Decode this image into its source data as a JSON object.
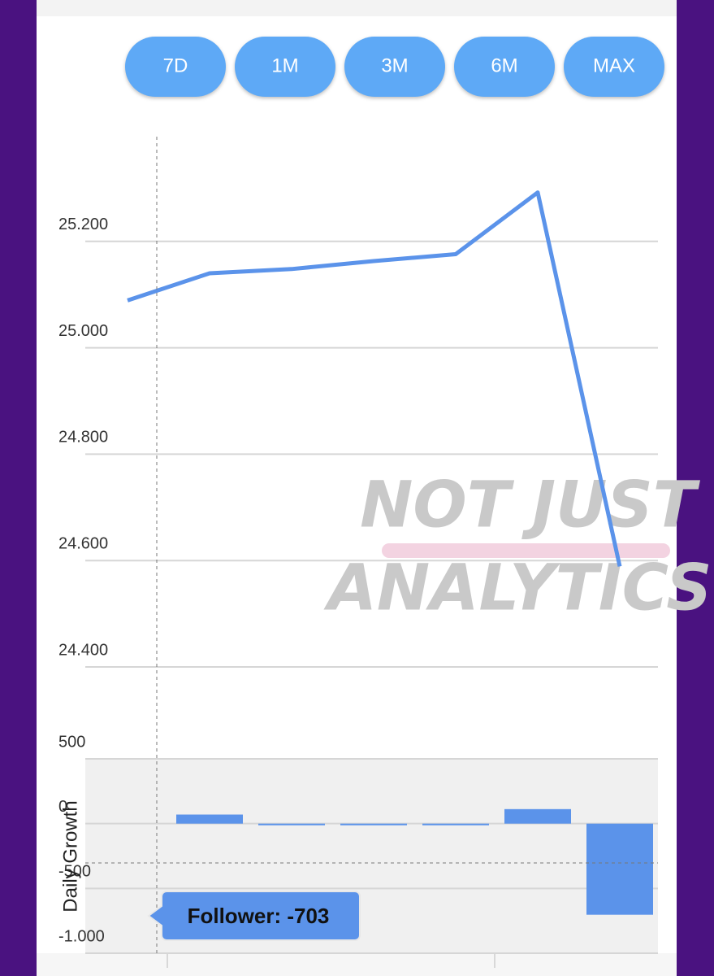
{
  "buttons": [
    "7D",
    "1M",
    "3M",
    "6M",
    "MAX"
  ],
  "watermark": [
    "NOT JUST",
    "ANALYTICS"
  ],
  "chart_data": [
    {
      "type": "line",
      "categories": [
        null,
        null,
        null,
        null,
        null,
        null,
        null
      ],
      "series": [
        {
          "color": "#5b93ea",
          "values": [
            25089,
            25140,
            25148,
            25163,
            25176,
            25292,
            24589
          ]
        }
      ],
      "ylim": [
        24400,
        25400
      ],
      "yticks": [
        {
          "value": 24400,
          "label": "24.400"
        },
        {
          "value": 24600,
          "label": "24.600"
        },
        {
          "value": 24800,
          "label": "24.800"
        },
        {
          "value": 25000,
          "label": "25.000"
        },
        {
          "value": 25200,
          "label": "25.200"
        }
      ],
      "grid": true
    },
    {
      "type": "bar",
      "y_label": "Daily Growth",
      "categories": [
        null,
        null,
        null,
        null,
        null,
        null
      ],
      "series": [
        {
          "color": "#5b93ea",
          "values": [
            70,
            -10,
            -10,
            -10,
            112,
            -703
          ]
        }
      ],
      "ylim": [
        -1000,
        500
      ],
      "yticks": [
        {
          "value": -1000,
          "label": "-1.000"
        },
        -500,
        0,
        500
      ],
      "tooltip": "Follower: -703",
      "grid": true
    }
  ]
}
